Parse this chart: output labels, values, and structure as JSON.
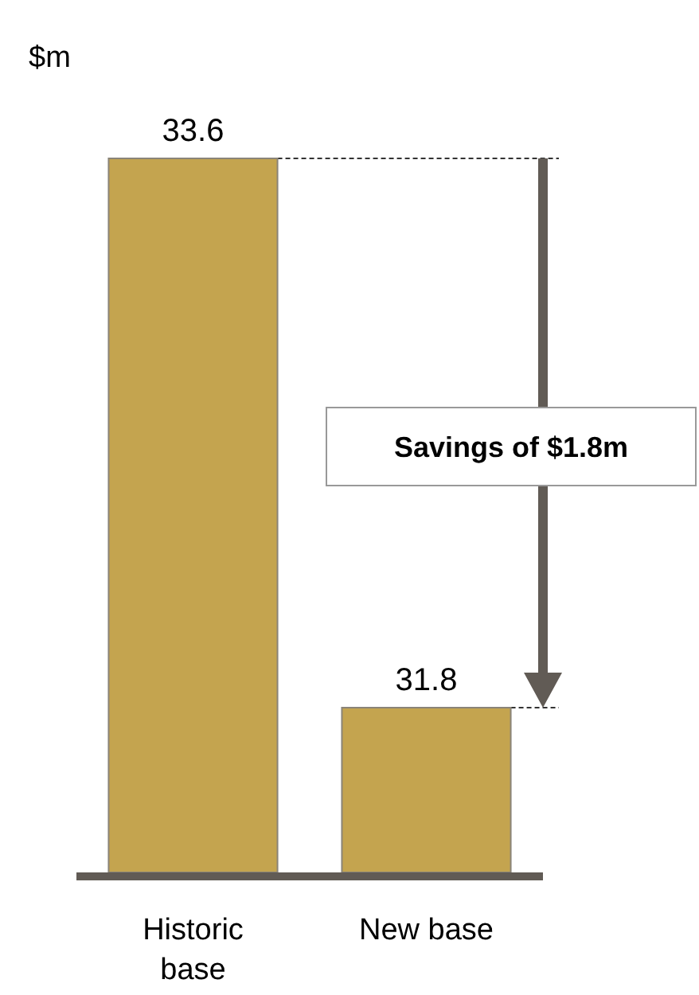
{
  "chart_data": {
    "type": "bar",
    "ylabel": "$m",
    "categories": [
      "Historic base",
      "New base"
    ],
    "values": [
      33.6,
      31.8
    ],
    "color": "#c4a44f",
    "ylim": [
      31.26,
      33.6
    ],
    "tick_labels": "x",
    "data_labels": true,
    "annotations": [
      "Savings of $1.8m"
    ]
  }
}
